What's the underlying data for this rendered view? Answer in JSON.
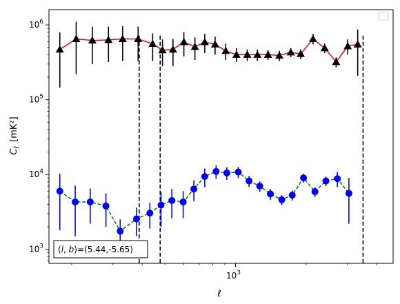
{
  "chart_data": {
    "type": "scatter",
    "xscale": "log",
    "yscale": "log",
    "xlim": [
      160,
      4700
    ],
    "ylim": [
      650,
      1600000
    ],
    "xlabel": "ℓ",
    "ylabel": "C",
    "ylabel_sub": "ℓ",
    "ylabel_unit": "[mK²]",
    "x_ticks": [
      {
        "value": 1000,
        "base": "10",
        "exp": "3"
      }
    ],
    "y_ticks": [
      {
        "value": 1000,
        "base": "10",
        "exp": "3"
      },
      {
        "value": 10000,
        "base": "10",
        "exp": "4"
      },
      {
        "value": 100000,
        "base": "10",
        "exp": "5"
      },
      {
        "value": 1000000,
        "base": "10",
        "exp": "6"
      }
    ],
    "vlines": [
      388,
      477,
      3500
    ],
    "annotation": "(l, b)=(5.44,-5.65)",
    "annotation_parts": {
      "open": "(",
      "l": "l",
      "sep": ", ",
      "b": "b",
      "close": ")=(5.44,-5.65)"
    },
    "legend": "upper-right-empty",
    "series": [
      {
        "marker": "triangle",
        "marker_color": "#000000",
        "line_color": "#ff0000",
        "line_style": "solid",
        "err_color": "#000000",
        "points": [
          {
            "x": 178,
            "y": 470000,
            "lo": 145000,
            "hi": 790000
          },
          {
            "x": 209,
            "y": 650000,
            "lo": 220000,
            "hi": 1100000
          },
          {
            "x": 245,
            "y": 620000,
            "lo": 300000,
            "hi": 950000
          },
          {
            "x": 287,
            "y": 630000,
            "lo": 320000,
            "hi": 950000
          },
          {
            "x": 330,
            "y": 650000,
            "lo": 330000,
            "hi": 960000
          },
          {
            "x": 384,
            "y": 650000,
            "lo": 330000,
            "hi": 950000
          },
          {
            "x": 443,
            "y": 560000,
            "lo": 330000,
            "hi": 770000
          },
          {
            "x": 488,
            "y": 460000,
            "lo": 280000,
            "hi": 640000
          },
          {
            "x": 541,
            "y": 470000,
            "lo": 280000,
            "hi": 650000
          },
          {
            "x": 602,
            "y": 590000,
            "lo": 380000,
            "hi": 800000
          },
          {
            "x": 671,
            "y": 510000,
            "lo": 340000,
            "hi": 680000
          },
          {
            "x": 739,
            "y": 590000,
            "lo": 420000,
            "hi": 760000
          },
          {
            "x": 818,
            "y": 550000,
            "lo": 400000,
            "hi": 700000
          },
          {
            "x": 908,
            "y": 450000,
            "lo": 340000,
            "hi": 560000
          },
          {
            "x": 1009,
            "y": 400000,
            "lo": 320000,
            "hi": 490000
          },
          {
            "x": 1122,
            "y": 400000,
            "lo": 330000,
            "hi": 470000
          },
          {
            "x": 1240,
            "y": 400000,
            "lo": 330000,
            "hi": 470000
          },
          {
            "x": 1376,
            "y": 400000,
            "lo": 340000,
            "hi": 460000
          },
          {
            "x": 1538,
            "y": 390000,
            "lo": 330000,
            "hi": 450000
          },
          {
            "x": 1721,
            "y": 430000,
            "lo": 370000,
            "hi": 490000
          },
          {
            "x": 1897,
            "y": 410000,
            "lo": 350000,
            "hi": 470000
          },
          {
            "x": 2141,
            "y": 650000,
            "lo": 550000,
            "hi": 760000
          },
          {
            "x": 2400,
            "y": 490000,
            "lo": 420000,
            "hi": 560000
          },
          {
            "x": 2686,
            "y": 320000,
            "lo": 270000,
            "hi": 370000
          },
          {
            "x": 3010,
            "y": 520000,
            "lo": 400000,
            "hi": 640000
          },
          {
            "x": 3320,
            "y": 550000,
            "lo": 210000,
            "hi": 870000
          }
        ]
      },
      {
        "marker": "circle",
        "marker_color": "#0000ff",
        "line_color": "#008000",
        "line_style": "dashed",
        "err_color": "#0000ff",
        "points": [
          {
            "x": 178,
            "y": 6000,
            "lo": 1800,
            "hi": 10200
          },
          {
            "x": 207,
            "y": 4300,
            "lo": 1500,
            "hi": 7100
          },
          {
            "x": 240,
            "y": 4300,
            "lo": 2200,
            "hi": 6500
          },
          {
            "x": 280,
            "y": 3800,
            "lo": 2000,
            "hi": 5600
          },
          {
            "x": 322,
            "y": 1750,
            "lo": 1000,
            "hi": 2500
          },
          {
            "x": 378,
            "y": 2550,
            "lo": 1500,
            "hi": 3600
          },
          {
            "x": 431,
            "y": 3050,
            "lo": 1900,
            "hi": 4200
          },
          {
            "x": 481,
            "y": 3900,
            "lo": 2000,
            "hi": 5800
          },
          {
            "x": 535,
            "y": 4500,
            "lo": 2600,
            "hi": 6400
          },
          {
            "x": 598,
            "y": 4300,
            "lo": 2600,
            "hi": 6000
          },
          {
            "x": 664,
            "y": 6400,
            "lo": 4400,
            "hi": 8400
          },
          {
            "x": 739,
            "y": 9400,
            "lo": 6800,
            "hi": 12000
          },
          {
            "x": 826,
            "y": 11000,
            "lo": 8700,
            "hi": 13300
          },
          {
            "x": 918,
            "y": 10500,
            "lo": 8500,
            "hi": 12500
          },
          {
            "x": 1027,
            "y": 10800,
            "lo": 9000,
            "hi": 12600
          },
          {
            "x": 1142,
            "y": 8200,
            "lo": 6800,
            "hi": 9600
          },
          {
            "x": 1268,
            "y": 7000,
            "lo": 5900,
            "hi": 8100
          },
          {
            "x": 1408,
            "y": 5500,
            "lo": 4600,
            "hi": 6400
          },
          {
            "x": 1574,
            "y": 4600,
            "lo": 3900,
            "hi": 5300
          },
          {
            "x": 1745,
            "y": 5300,
            "lo": 4500,
            "hi": 6100
          },
          {
            "x": 1950,
            "y": 9000,
            "lo": 7800,
            "hi": 10200
          },
          {
            "x": 2182,
            "y": 5900,
            "lo": 5000,
            "hi": 6800
          },
          {
            "x": 2429,
            "y": 8200,
            "lo": 7000,
            "hi": 9400
          },
          {
            "x": 2719,
            "y": 8800,
            "lo": 6800,
            "hi": 10800
          },
          {
            "x": 3045,
            "y": 5600,
            "lo": 2200,
            "hi": 9000
          }
        ]
      }
    ]
  }
}
